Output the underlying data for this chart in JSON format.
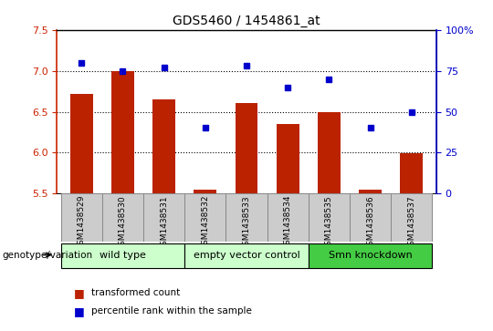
{
  "title": "GDS5460 / 1454861_at",
  "samples": [
    "GSM1438529",
    "GSM1438530",
    "GSM1438531",
    "GSM1438532",
    "GSM1438533",
    "GSM1438534",
    "GSM1438535",
    "GSM1438536",
    "GSM1438537"
  ],
  "transformed_count": [
    6.72,
    7.0,
    6.65,
    5.55,
    6.61,
    6.35,
    6.5,
    5.55,
    5.99
  ],
  "percentile_rank": [
    80,
    75,
    77,
    40,
    78,
    65,
    70,
    40,
    50
  ],
  "bar_color": "#bb2200",
  "point_color": "#0000cc",
  "ylim_left": [
    5.5,
    7.5
  ],
  "ylim_right": [
    0,
    100
  ],
  "yticks_left": [
    5.5,
    6.0,
    6.5,
    7.0,
    7.5
  ],
  "yticks_right": [
    0,
    25,
    50,
    75,
    100
  ],
  "ylabel_left_color": "#cc2200",
  "ylabel_right_color": "#0000cc",
  "group_configs": [
    {
      "start": 0,
      "end": 2,
      "label": "wild type",
      "color": "#ccffcc"
    },
    {
      "start": 3,
      "end": 5,
      "label": "empty vector control",
      "color": "#ccffcc"
    },
    {
      "start": 6,
      "end": 8,
      "label": "Smn knockdown",
      "color": "#44cc44"
    }
  ],
  "legend_tc": "transformed count",
  "legend_pr": "percentile rank within the sample",
  "group_label": "genotype/variation",
  "bar_width": 0.55,
  "baseline": 5.5,
  "sample_bg_color": "#cccccc",
  "sample_border_color": "#888888"
}
